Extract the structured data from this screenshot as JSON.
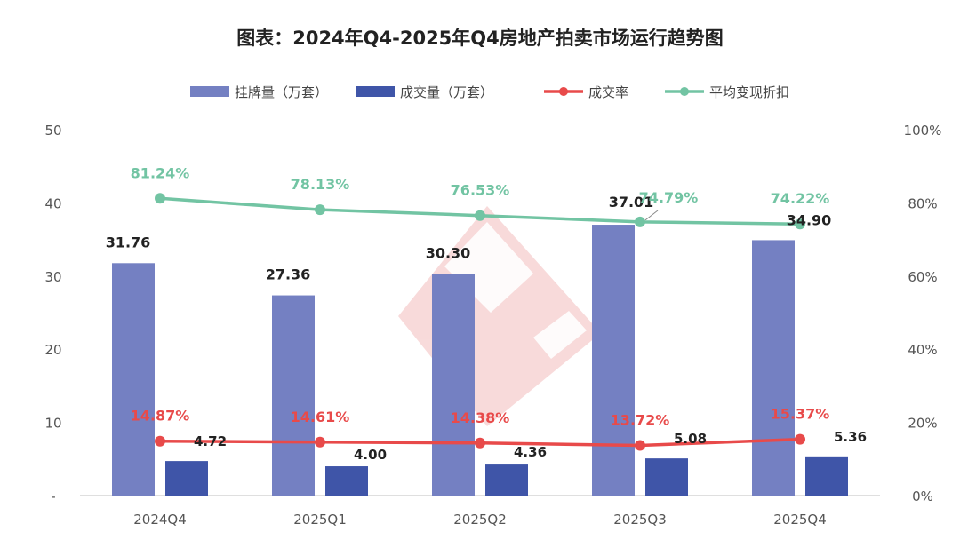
{
  "chart_data": {
    "type": "bar",
    "title": "图表：2024年Q4-2025年Q4房地产拍卖市场运行趋势图",
    "categories": [
      "2024Q4",
      "2025Q1",
      "2025Q2",
      "2025Q3",
      "2025Q4"
    ],
    "series": [
      {
        "name": "挂牌量（万套）",
        "type": "bar",
        "axis": "left",
        "color": "#7480c2",
        "values": [
          31.76,
          27.36,
          30.3,
          37.01,
          34.9
        ],
        "labels": [
          "31.76",
          "27.36",
          "30.30",
          "37.01",
          "34.90"
        ]
      },
      {
        "name": "成交量（万套）",
        "type": "bar",
        "axis": "left",
        "color": "#3f55a8",
        "values": [
          4.72,
          4.0,
          4.36,
          5.08,
          5.36
        ],
        "labels": [
          "4.72",
          "4.00",
          "4.36",
          "5.08",
          "5.36"
        ]
      },
      {
        "name": "成交率",
        "type": "line",
        "axis": "right",
        "color": "#e84a4a",
        "values": [
          14.87,
          14.61,
          14.38,
          13.72,
          15.37
        ],
        "labels": [
          "14.87%",
          "14.61%",
          "14.38%",
          "13.72%",
          "15.37%"
        ]
      },
      {
        "name": "平均变现折扣",
        "type": "line",
        "axis": "right",
        "color": "#72c4a3",
        "values": [
          81.24,
          78.13,
          76.53,
          74.79,
          74.22
        ],
        "labels": [
          "81.24%",
          "78.13%",
          "76.53%",
          "74.79%",
          "74.22%"
        ]
      }
    ],
    "y_left": {
      "range": [
        0,
        50
      ],
      "ticks": [
        "-",
        "10",
        "20",
        "30",
        "40",
        "50"
      ]
    },
    "y_right": {
      "range": [
        0,
        100
      ],
      "ticks": [
        "0%",
        "20%",
        "40%",
        "60%",
        "80%",
        "100%"
      ]
    },
    "grid": false,
    "legend": "top-center"
  }
}
